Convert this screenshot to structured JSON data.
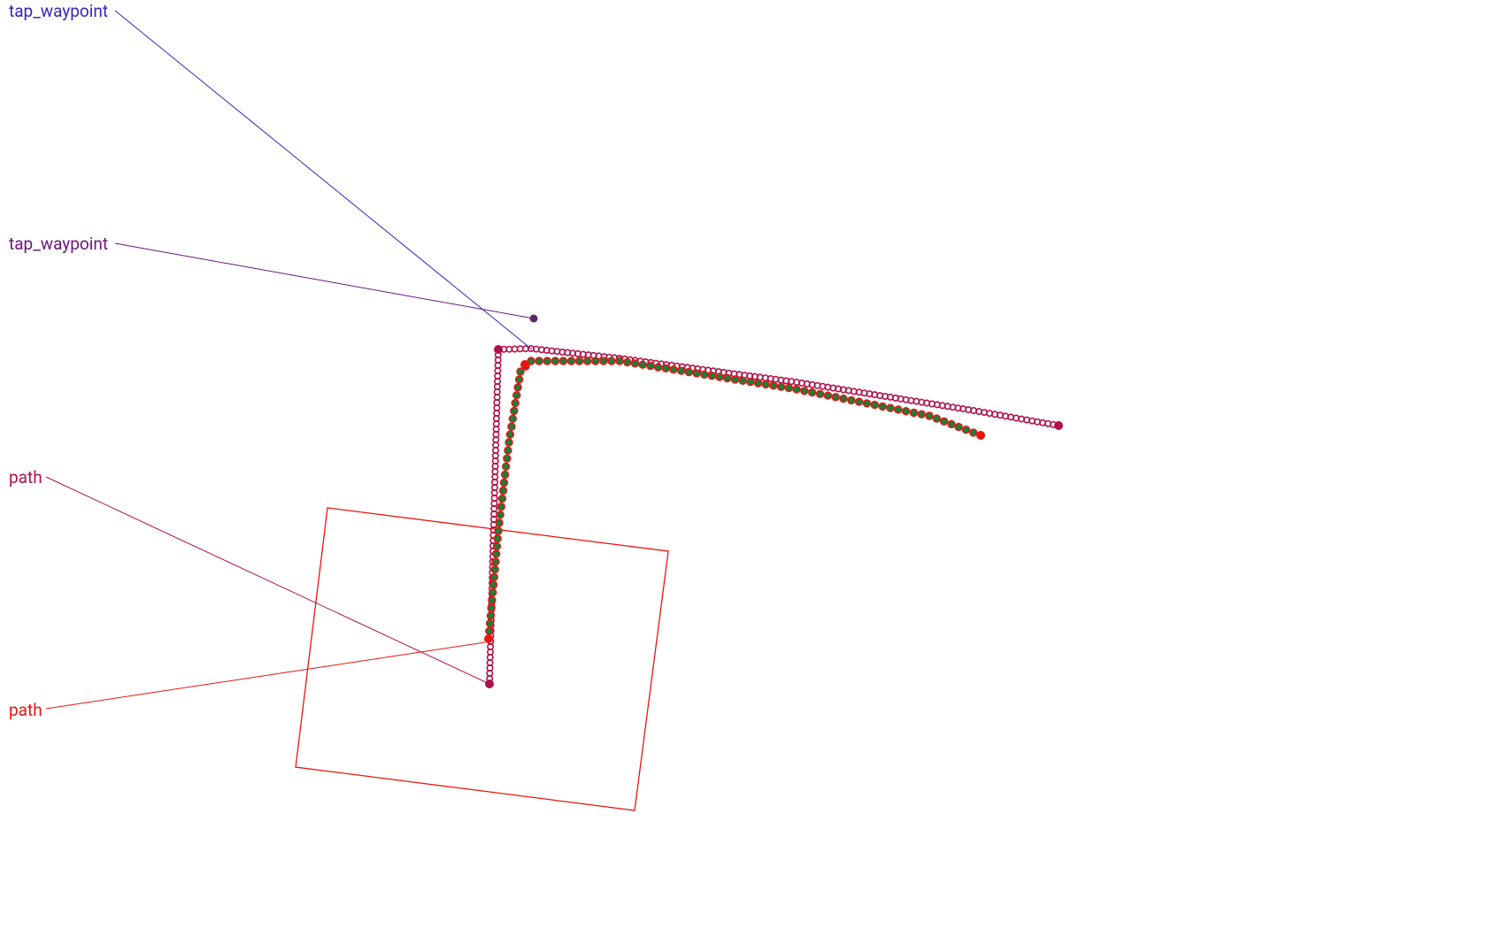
{
  "labels": {
    "tap_waypoint_1": "tap_waypoint",
    "tap_waypoint_2": "tap_waypoint",
    "path_1": "path",
    "path_2": "path"
  },
  "colors": {
    "tap_waypoint_1": "#3b1fc1",
    "tap_waypoint_2": "#6b1580",
    "path_1": "#b0104a",
    "path_2": "#e8150f",
    "planned_path_dot": "#b0104a",
    "actual_path_ring": "#e8150f",
    "actual_path_core": "#1d7d3a",
    "waypoint_dot": "#5a2a6a",
    "footprint_box": "#e8150f"
  }
}
